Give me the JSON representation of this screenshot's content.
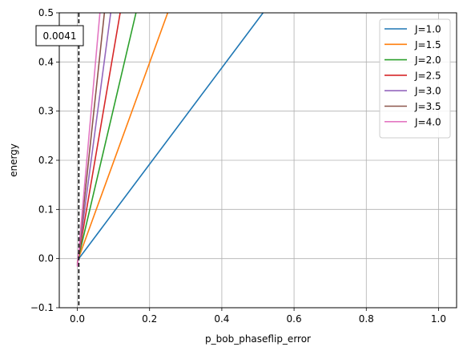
{
  "chart_data": {
    "type": "line",
    "xlabel": "p_bob_phaseflip_error",
    "ylabel": "energy",
    "xlim": [
      -0.05,
      1.05
    ],
    "ylim": [
      -0.1,
      0.5
    ],
    "xticks": [
      0.0,
      0.2,
      0.4,
      0.6,
      0.8,
      1.0
    ],
    "xtick_labels": [
      "0.0",
      "0.2",
      "0.4",
      "0.6",
      "0.8",
      "1.0"
    ],
    "yticks": [
      -0.1,
      0.0,
      0.1,
      0.2,
      0.3,
      0.4,
      0.5
    ],
    "ytick_labels": [
      "−0.1",
      "0.0",
      "0.1",
      "0.2",
      "0.3",
      "0.4",
      "0.5"
    ],
    "grid": true,
    "legend_position": "top-right",
    "vline": {
      "x": 0.0041,
      "style": "dashed",
      "color": "#000000"
    },
    "annotation": {
      "text": "0.0041"
    },
    "series": [
      {
        "name": "J=1.0",
        "color": "#1f77b4",
        "x": [
          0.0,
          0.5141
        ],
        "y": [
          -0.0041,
          0.5
        ]
      },
      {
        "name": "J=1.5",
        "color": "#ff7f0e",
        "x": [
          0.0,
          0.2502
        ],
        "y": [
          -0.0061,
          0.5
        ]
      },
      {
        "name": "J=2.0",
        "color": "#2ca02c",
        "x": [
          0.0,
          0.1624
        ],
        "y": [
          -0.0082,
          0.5
        ]
      },
      {
        "name": "J=2.5",
        "color": "#d62728",
        "x": [
          0.0,
          0.1186
        ],
        "y": [
          -0.0102,
          0.5
        ]
      },
      {
        "name": "J=3.0",
        "color": "#9467bd",
        "x": [
          0.0,
          0.0924
        ],
        "y": [
          -0.0123,
          0.5
        ]
      },
      {
        "name": "J=3.5",
        "color": "#8c564b",
        "x": [
          0.0,
          0.0749
        ],
        "y": [
          -0.0143,
          0.5
        ]
      },
      {
        "name": "J=4.0",
        "color": "#e377c2",
        "x": [
          0.0,
          0.0625
        ],
        "y": [
          -0.0164,
          0.5
        ]
      }
    ]
  }
}
